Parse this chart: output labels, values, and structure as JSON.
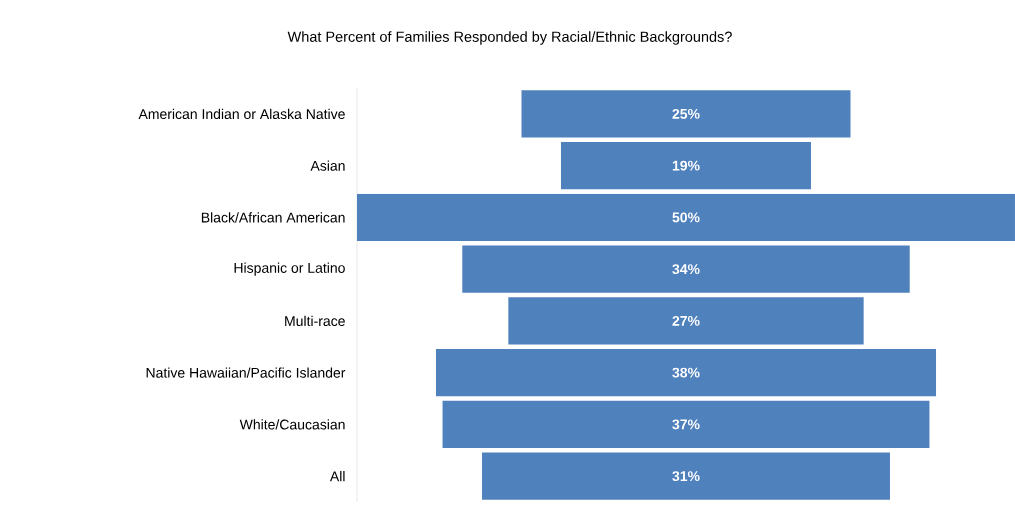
{
  "chart_data": {
    "type": "other",
    "title": "What Percent of Families Responded by Racial/Ethnic Backgrounds?",
    "categories": [
      "American Indian or Alaska Native",
      "Asian",
      "Black/African American",
      "Hispanic or Latino",
      "Multi-race",
      "Native Hawaiian/Pacific Islander",
      "White/Caucasian",
      "All"
    ],
    "values": [
      25,
      19,
      50,
      34,
      27,
      38,
      37,
      31
    ],
    "value_labels": [
      "25%",
      "19%",
      "50%",
      "34%",
      "27%",
      "38%",
      "37%",
      "31%"
    ],
    "color": "#4f81bd"
  }
}
